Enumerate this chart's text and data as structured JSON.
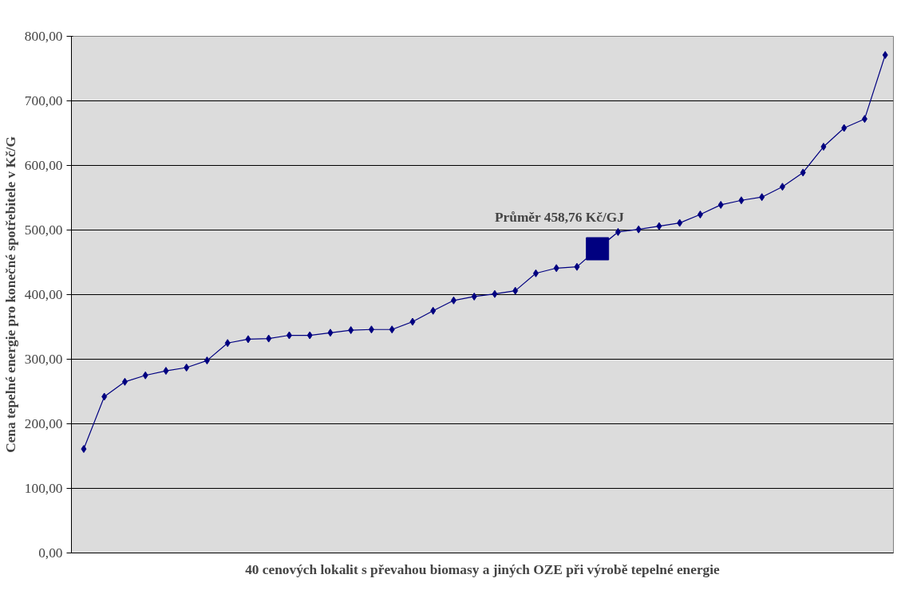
{
  "chart_data": {
    "type": "line",
    "xlabel": "40 cenových lokalit s převahou biomasy a jiných OZE při výrobě tepelné energie",
    "ylabel": "Cena tepelné energie pro konečné spotřebitele v Kč/G",
    "categories": [
      null,
      null,
      null,
      null,
      null,
      null,
      null,
      null,
      null,
      null,
      null,
      null,
      null,
      null,
      null,
      null,
      null,
      null,
      null,
      null,
      null,
      null,
      null,
      null,
      null,
      null,
      null,
      null,
      null,
      null,
      null,
      null,
      null,
      null,
      null,
      null,
      null,
      null,
      null,
      null
    ],
    "series": [
      {
        "color": "#000080",
        "marker": "diamond",
        "values": [
          161,
          242,
          265,
          275,
          282,
          287,
          298,
          325,
          331,
          332,
          337,
          337,
          341,
          345,
          346,
          346,
          358,
          375,
          391,
          397,
          401,
          406,
          433,
          441,
          443,
          471,
          497,
          501,
          506,
          511,
          524,
          539,
          546,
          551,
          567,
          589,
          629,
          658,
          672,
          771
        ]
      },
      {
        "type": "scatter",
        "color": "#000080",
        "marker": "square",
        "values": [
          null,
          null,
          null,
          null,
          null,
          null,
          null,
          null,
          null,
          null,
          null,
          null,
          null,
          null,
          null,
          null,
          null,
          null,
          null,
          null,
          null,
          null,
          null,
          null,
          null,
          471,
          null,
          null,
          null,
          null,
          null,
          null,
          null,
          null,
          null,
          null,
          null,
          null,
          null,
          null
        ]
      }
    ],
    "annotations": [
      "Průměr 458,76 Kč/GJ"
    ],
    "ylim": [
      0,
      800
    ],
    "yticks": [
      {
        "value": 0,
        "label": "0,00"
      },
      {
        "value": 100,
        "label": "100,00"
      },
      {
        "value": 200,
        "label": "200,00"
      },
      {
        "value": 300,
        "label": "300,00"
      },
      {
        "value": 400,
        "label": "400,00"
      },
      {
        "value": 500,
        "label": "500,00"
      },
      {
        "value": 600,
        "label": "600,00"
      },
      {
        "value": 700,
        "label": "700,00"
      },
      {
        "value": 800,
        "label": "800,00"
      }
    ],
    "grid": "y"
  }
}
